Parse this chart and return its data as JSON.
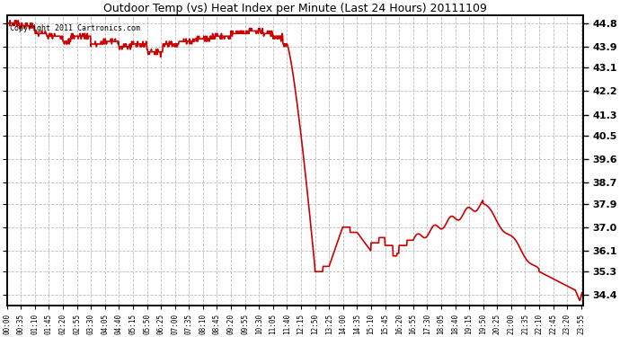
{
  "title": "Outdoor Temp (vs) Heat Index per Minute (Last 24 Hours) 20111109",
  "copyright_text": "Copyright 2011 Cartronics.com",
  "line_color": "#cc0000",
  "background_color": "#ffffff",
  "grid_color": "#bbbbbb",
  "yticks": [
    34.4,
    35.3,
    36.1,
    37.0,
    37.9,
    38.7,
    39.6,
    40.5,
    41.3,
    42.2,
    43.1,
    43.9,
    44.8
  ],
  "ylim": [
    34.0,
    45.1
  ],
  "xtick_labels": [
    "00:00",
    "00:35",
    "01:10",
    "01:45",
    "02:20",
    "02:55",
    "03:30",
    "04:05",
    "04:40",
    "05:15",
    "05:50",
    "06:25",
    "07:00",
    "07:35",
    "08:10",
    "08:45",
    "09:20",
    "09:55",
    "10:30",
    "11:05",
    "11:40",
    "12:15",
    "12:50",
    "13:25",
    "14:00",
    "14:35",
    "15:10",
    "15:45",
    "16:20",
    "16:55",
    "17:30",
    "18:05",
    "18:40",
    "19:15",
    "19:50",
    "20:25",
    "21:00",
    "21:35",
    "22:10",
    "22:45",
    "23:20",
    "23:55"
  ]
}
